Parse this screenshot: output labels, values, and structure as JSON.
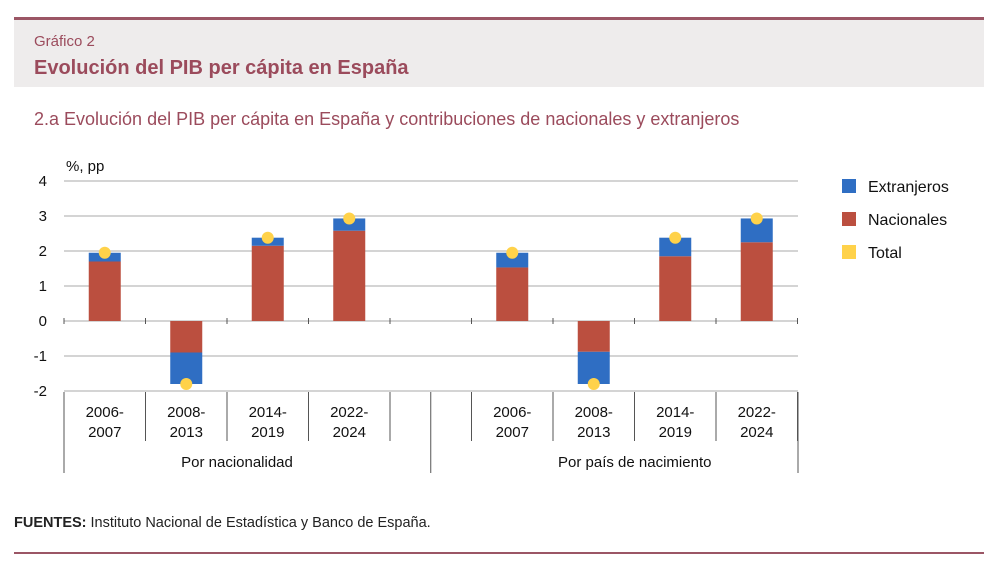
{
  "figure": {
    "label": "Gráfico 2",
    "title": "Evolución del PIB per cápita en España",
    "subtitle": "2.a  Evolución del PIB per cápita en España y contribuciones de nacionales y extranjeros"
  },
  "sources": {
    "label": "FUENTES:",
    "text": " Instituto Nacional de Estadística y Banco de España."
  },
  "chart_data": {
    "type": "bar",
    "stacked": true,
    "ylabel": "%, pp",
    "ylim": [
      -2,
      4
    ],
    "yticks": [
      4,
      3,
      2,
      1,
      0,
      -1,
      -2
    ],
    "grid": true,
    "legend_position": "right",
    "colors": {
      "Extranjeros": "#2f6ec3",
      "Nacionales": "#bb4f3f",
      "Total": "#ffd24a"
    },
    "groups": [
      {
        "label": "Por nacionalidad",
        "categories": [
          {
            "line1": "2006-",
            "line2": "2007"
          },
          {
            "line1": "2008-",
            "line2": "2013"
          },
          {
            "line1": "2014-",
            "line2": "2019"
          },
          {
            "line1": "2022-",
            "line2": "2024"
          }
        ],
        "series": [
          {
            "name": "Nacionales",
            "values": [
              1.7,
              -0.9,
              2.15,
              2.58
            ]
          },
          {
            "name": "Extranjeros",
            "values": [
              0.25,
              -0.9,
              0.23,
              0.35
            ]
          },
          {
            "name": "Total",
            "values": [
              1.95,
              -1.8,
              2.38,
              2.93
            ]
          }
        ]
      },
      {
        "label": "Por país de nacimiento",
        "categories": [
          {
            "line1": "2006-",
            "line2": "2007"
          },
          {
            "line1": "2008-",
            "line2": "2013"
          },
          {
            "line1": "2014-",
            "line2": "2019"
          },
          {
            "line1": "2022-",
            "line2": "2024"
          }
        ],
        "series": [
          {
            "name": "Nacionales",
            "values": [
              1.53,
              -0.88,
              1.85,
              2.25
            ]
          },
          {
            "name": "Extranjeros",
            "values": [
              0.42,
              -0.92,
              0.53,
              0.68
            ]
          },
          {
            "name": "Total",
            "values": [
              1.95,
              -1.8,
              2.38,
              2.93
            ]
          }
        ]
      }
    ],
    "legend": [
      "Extranjeros",
      "Nacionales",
      "Total"
    ]
  }
}
